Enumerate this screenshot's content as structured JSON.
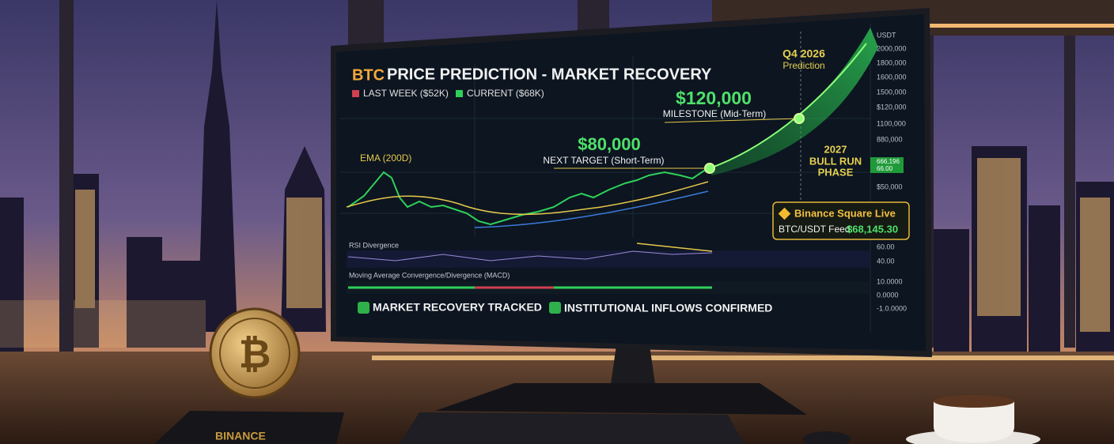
{
  "screen": {
    "title_prefix": "BTC",
    "title": "PRICE PREDICTION - MARKET RECOVERY",
    "legend": [
      "LAST WEEK ($52K)",
      "CURRENT ($68K)"
    ],
    "ema_label": "EMA (200D)",
    "targets": [
      {
        "price": "$80,000",
        "label": "NEXT TARGET (Short-Term)"
      },
      {
        "price": "$120,000",
        "label": "MILESTONE (Mid-Term)"
      }
    ],
    "prediction": {
      "period": "Q4 2026",
      "label": "Prediction"
    },
    "phase": [
      "2027",
      "BULL RUN",
      "PHASE"
    ],
    "live_box": {
      "title": "Binance Square Live",
      "feed_label": "BTC/USDT Feed:",
      "feed_value": "$68,145.30"
    },
    "panels": {
      "rsi": "RSI Divergence",
      "macd": "Moving Average Convergence/Divergence (MACD)"
    },
    "axis": {
      "unit": "USDT",
      "labels": [
        "2000,000",
        "1800,000",
        "1600,000",
        "1500,000",
        "$120,000",
        "1100,000",
        "880,000",
        "$50,000"
      ]
    },
    "price_tag": [
      "666,196",
      "66.00"
    ],
    "rsi_axis": [
      "60.00",
      "40.00"
    ],
    "macd_axis": [
      "10.0000",
      "0.0000",
      "-1.0.0000"
    ],
    "badges": [
      "MARKET RECOVERY TRACKED",
      "INSTITUTIONAL INFLOWS CONFIRMED"
    ]
  },
  "book_label": "BINANCE",
  "coin_symbol": "₿"
}
